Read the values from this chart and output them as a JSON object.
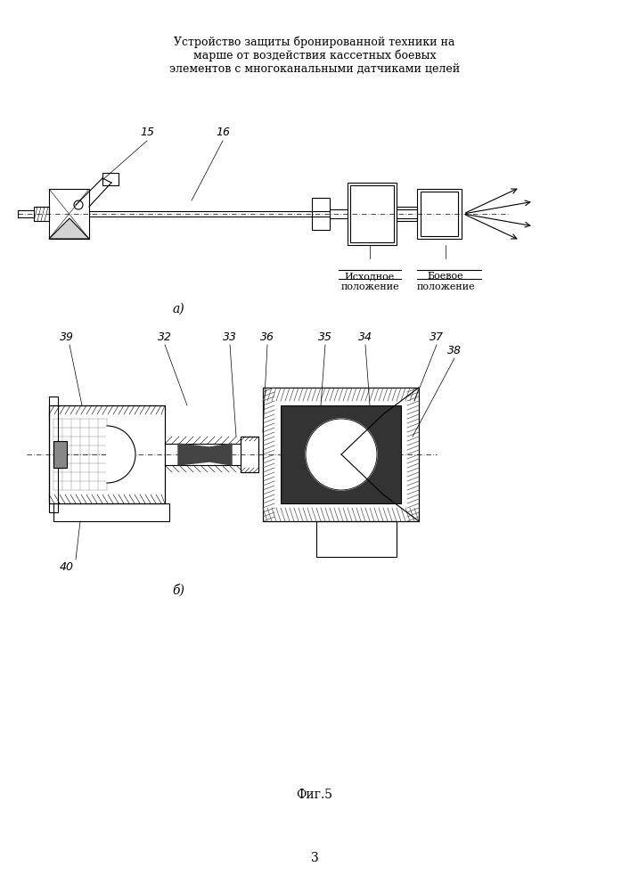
{
  "title": "Устройство защиты бронированной техники на\nмарше от воздействия кассетных боевых\nэлементов с многоканальными датчиками целей",
  "fig_label": "Фиг.5",
  "label_a": "а)",
  "label_b": "б)",
  "page_number": "3",
  "bg_color": "#ffffff",
  "line_color": "#000000",
  "label_ishodnoe": "Исходное\nположение",
  "label_boevoe": "Боевое\nположение",
  "numbers_top": [
    "15",
    "16"
  ],
  "numbers_bottom": [
    "39",
    "32",
    "33",
    "36",
    "35",
    "34",
    "37",
    "38",
    "40"
  ]
}
